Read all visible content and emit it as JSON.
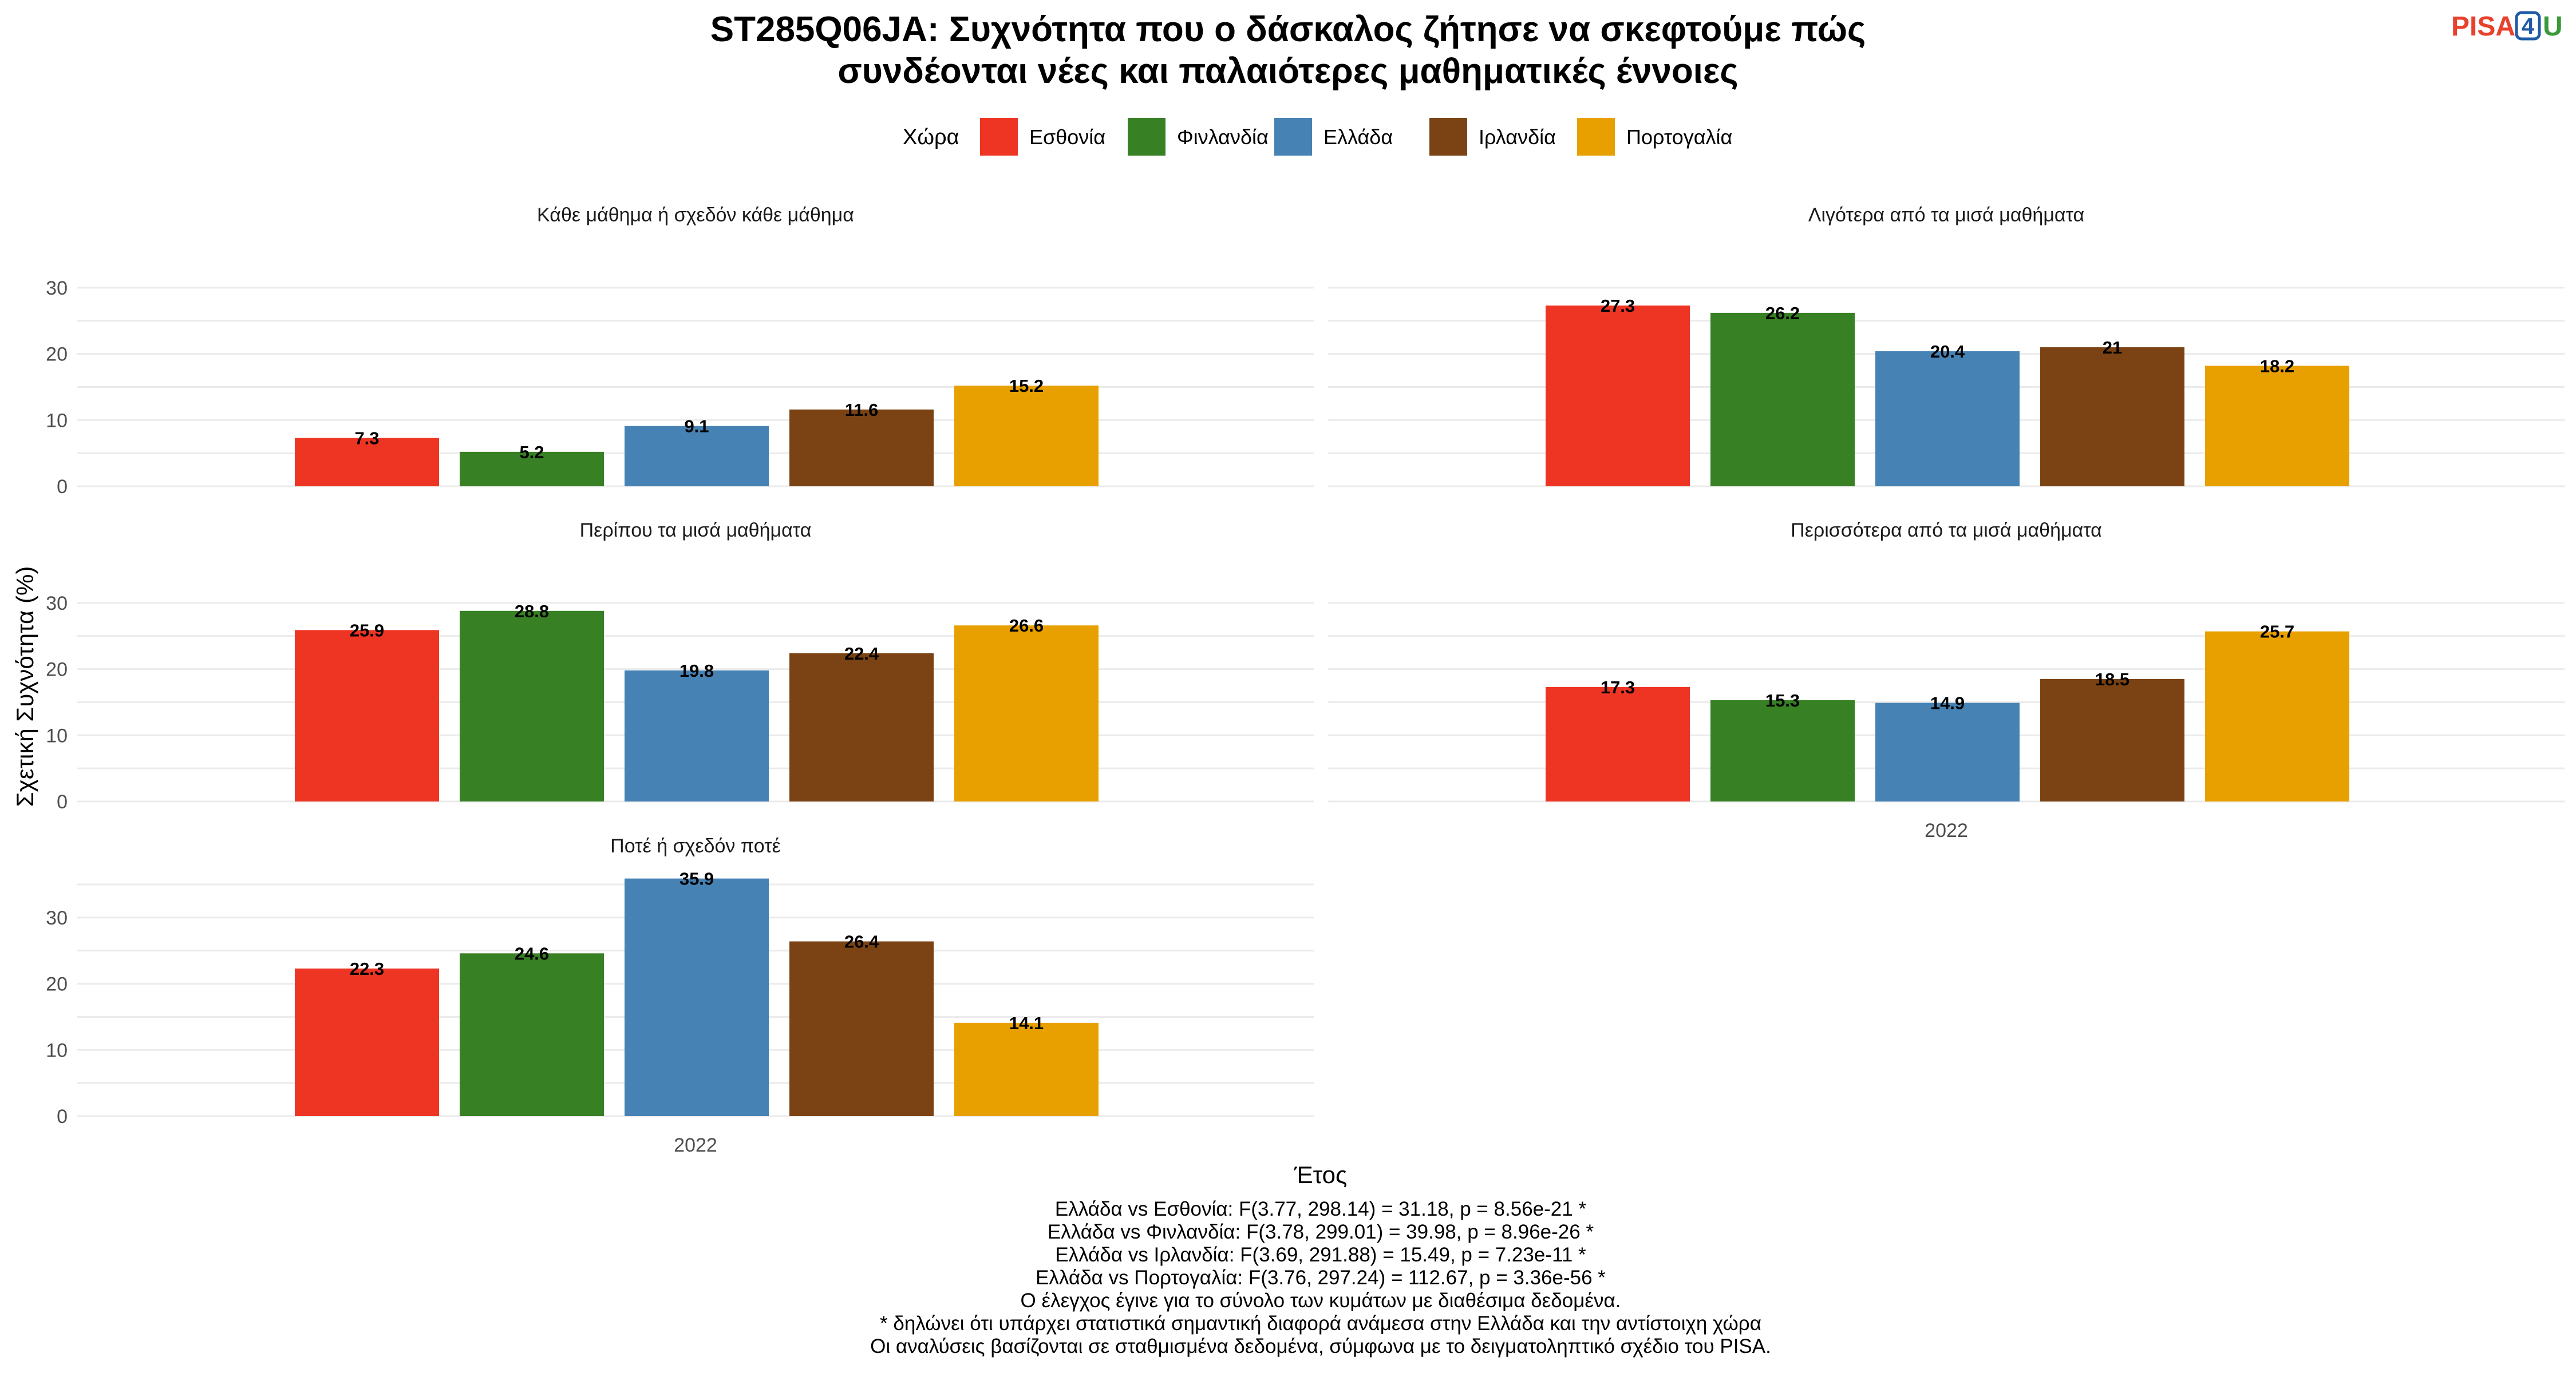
{
  "title_line1": "ST285Q06JA: Συχνότητα που ο δάσκαλος ζήτησε να σκεφτούμε πώς",
  "title_line2": "συνδέονται νέες και παλαιότερες μαθηματικές έννοιες",
  "logo": {
    "text_pisa": "PISA",
    "text_four": "4",
    "text_u": "U"
  },
  "legend": {
    "title": "Χώρα",
    "position": "top",
    "entries": [
      {
        "name": "Εσθονία",
        "color": "#EE3524"
      },
      {
        "name": "Φινλανδία",
        "color": "#378024"
      },
      {
        "name": "Ελλάδα",
        "color": "#4682B4"
      },
      {
        "name": "Ιρλανδία",
        "color": "#7B4313"
      },
      {
        "name": "Πορτογαλία",
        "color": "#E8A000"
      }
    ]
  },
  "chart_data": {
    "type": "bar",
    "facet_by": "frequency",
    "xlabel": "Έτος",
    "ylabel": "Σχετική Συχνότητα (%)",
    "x_category": "2022",
    "grid": true,
    "series_names": [
      "Εσθονία",
      "Φινλανδία",
      "Ελλάδα",
      "Ιρλανδία",
      "Πορτογαλία"
    ],
    "panels": [
      {
        "title": "Κάθε μάθημα ή σχεδόν κάθε μάθημα",
        "values": [
          7.3,
          5.2,
          9.1,
          11.6,
          15.2
        ],
        "value_labels": [
          "7.3",
          "5.2",
          "9.1",
          "11.6",
          "15.2"
        ],
        "ylim": [
          0,
          33
        ],
        "yticks": [
          "0",
          "10",
          "20",
          "30"
        ],
        "show_x_label": false
      },
      {
        "title": "Λιγότερα από τα μισά μαθήματα",
        "values": [
          27.3,
          26.2,
          20.4,
          21,
          18.2
        ],
        "value_labels": [
          "27.3",
          "26.2",
          "20.4",
          "21",
          "18.2"
        ],
        "ylim": [
          0,
          33
        ],
        "yticks": [],
        "show_x_label": false
      },
      {
        "title": "Περίπου τα μισά μαθήματα",
        "values": [
          25.9,
          28.8,
          19.8,
          22.4,
          26.6
        ],
        "value_labels": [
          "25.9",
          "28.8",
          "19.8",
          "22.4",
          "26.6"
        ],
        "ylim": [
          0,
          33
        ],
        "yticks": [
          "0",
          "10",
          "20",
          "30"
        ],
        "show_x_label": false
      },
      {
        "title": "Περισσότερα από τα μισά μαθήματα",
        "values": [
          17.3,
          15.3,
          14.9,
          18.5,
          25.7
        ],
        "value_labels": [
          "17.3",
          "15.3",
          "14.9",
          "18.5",
          "25.7"
        ],
        "ylim": [
          0,
          33
        ],
        "yticks": [],
        "show_x_label": true
      },
      {
        "title": "Ποτέ ή σχεδόν ποτέ",
        "values": [
          22.3,
          24.6,
          35.9,
          26.4,
          14.1
        ],
        "value_labels": [
          "22.3",
          "24.6",
          "35.9",
          "26.4",
          "14.1"
        ],
        "ylim": [
          0,
          36
        ],
        "yticks": [
          "0",
          "10",
          "20",
          "30"
        ],
        "show_x_label": true
      }
    ]
  },
  "notes": [
    "Ελλάδα vs Εσθονία: F(3.77, 298.14) = 31.18, p = 8.56e-21 *",
    "Ελλάδα vs Φινλανδία: F(3.78, 299.01) = 39.98, p = 8.96e-26 *",
    "Ελλάδα vs Ιρλανδία: F(3.69, 291.88) = 15.49, p = 7.23e-11 *",
    "Ελλάδα vs Πορτογαλία: F(3.76, 297.24) = 112.67, p = 3.36e-56 *",
    "Ο έλεγχος έγινε για το σύνολο των κυμάτων με διαθέσιμα δεδομένα.",
    "* δηλώνει ότι υπάρχει στατιστικά σημαντική διαφορά ανάμεσα στην Ελλάδα και την αντίστοιχη χώρα",
    "Οι αναλύσεις βασίζονται σε σταθμισμένα δεδομένα, σύμφωνα με το δειγματοληπτικό σχέδιο του PISA."
  ]
}
